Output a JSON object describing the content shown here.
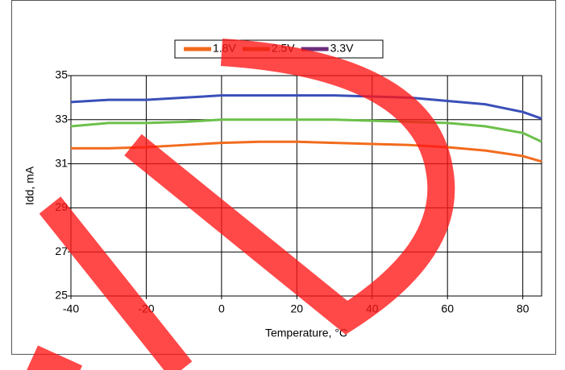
{
  "chart_data": {
    "type": "line",
    "x_label": "Temperature, °C",
    "y_label": "Idd, mA",
    "x": [
      -40,
      -30,
      -20,
      -10,
      0,
      10,
      20,
      30,
      40,
      50,
      60,
      70,
      80,
      85
    ],
    "series": [
      {
        "name": "1.8V",
        "color": "#f26b1d",
        "legend_color": "#f26b1d",
        "values": [
          31.7,
          31.7,
          31.75,
          31.85,
          31.95,
          32,
          32,
          31.95,
          31.9,
          31.85,
          31.75,
          31.6,
          31.35,
          31.1
        ]
      },
      {
        "name": "2.5V",
        "color": "#6cc04a",
        "legend_color": "#c8782a",
        "values": [
          32.7,
          32.85,
          32.85,
          32.9,
          33,
          33,
          33,
          33,
          32.95,
          32.9,
          32.85,
          32.7,
          32.4,
          32.0
        ]
      },
      {
        "name": "3.3V",
        "color": "#3a4fb8",
        "legend_color": "#6b2d7a",
        "values": [
          33.8,
          33.9,
          33.9,
          34.0,
          34.1,
          34.1,
          34.1,
          34.1,
          34.05,
          34.0,
          33.85,
          33.7,
          33.35,
          33.05
        ]
      }
    ],
    "xlim": [
      -40,
      85
    ],
    "xticks": [
      -40,
      -20,
      0,
      20,
      40,
      60,
      80
    ],
    "ylim": [
      25,
      35
    ],
    "yticks": [
      25,
      27,
      29,
      31,
      33,
      35
    ],
    "grid": true,
    "legend": "top"
  }
}
